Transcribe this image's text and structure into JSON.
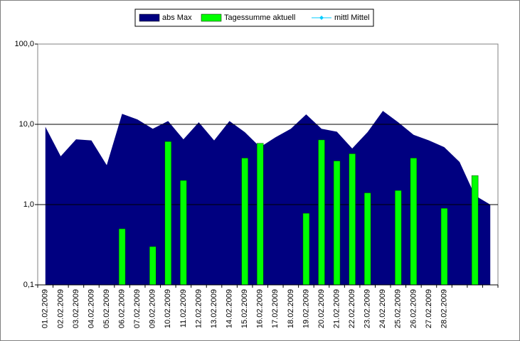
{
  "chart_data": {
    "type": "area_bar",
    "categories": [
      "01.02.2009",
      "02.02.2009",
      "03.02.2009",
      "04.02.2009",
      "05.02.2009",
      "06.02.2009",
      "07.02.2009",
      "09.02.2009",
      "10.02.2009",
      "11.02.2009",
      "12.02.2009",
      "13.02.2009",
      "14.02.2009",
      "15.02.2009",
      "16.02.2009",
      "17.02.2009",
      "18.02.2009",
      "19.02.2009",
      "20.02.2009",
      "21.02.2009",
      "22.02.2009",
      "23.02.2009",
      "24.02.2009",
      "25.02.2009",
      "26.02.2009",
      "27.02.2009",
      "28.02.2009",
      null,
      null,
      null
    ],
    "series": [
      {
        "name": "abs Max",
        "color": "#000080",
        "kind": "area",
        "values": [
          9.3,
          4.0,
          6.5,
          6.3,
          3.1,
          13.5,
          11.5,
          8.8,
          11.0,
          6.5,
          10.6,
          6.3,
          11.0,
          8.0,
          5.2,
          6.9,
          8.8,
          13.3,
          8.8,
          8.1,
          5.0,
          8.0,
          14.7,
          10.6,
          7.4,
          6.3,
          5.2,
          3.4,
          1.3,
          1.0
        ]
      },
      {
        "name": "Tagessumme aktuell",
        "color": "#00ff00",
        "kind": "bar",
        "values": [
          null,
          null,
          null,
          null,
          null,
          0.5,
          null,
          0.3,
          6.1,
          2.0,
          null,
          null,
          null,
          3.8,
          5.8,
          null,
          null,
          0.78,
          6.4,
          3.5,
          4.3,
          1.4,
          null,
          1.5,
          3.8,
          null,
          0.9,
          null,
          2.3,
          null
        ]
      },
      {
        "name": "mittl Mittel",
        "color": "#00ccff",
        "kind": "line",
        "values": [
          null,
          null,
          null,
          null,
          null,
          null,
          null,
          null,
          null,
          null,
          null,
          null,
          null,
          null,
          null,
          null,
          null,
          null,
          null,
          null,
          null,
          null,
          null,
          null,
          null,
          null,
          null,
          null,
          null,
          null
        ]
      }
    ],
    "log_y": true,
    "ylim": [
      0.1,
      100
    ],
    "yticks": [
      {
        "value": 0.1,
        "label": "0,1"
      },
      {
        "value": 1,
        "label": "1,0"
      },
      {
        "value": 10,
        "label": "10,0"
      },
      {
        "value": 100,
        "label": "100,0"
      }
    ],
    "grid": true,
    "legend": "top"
  }
}
